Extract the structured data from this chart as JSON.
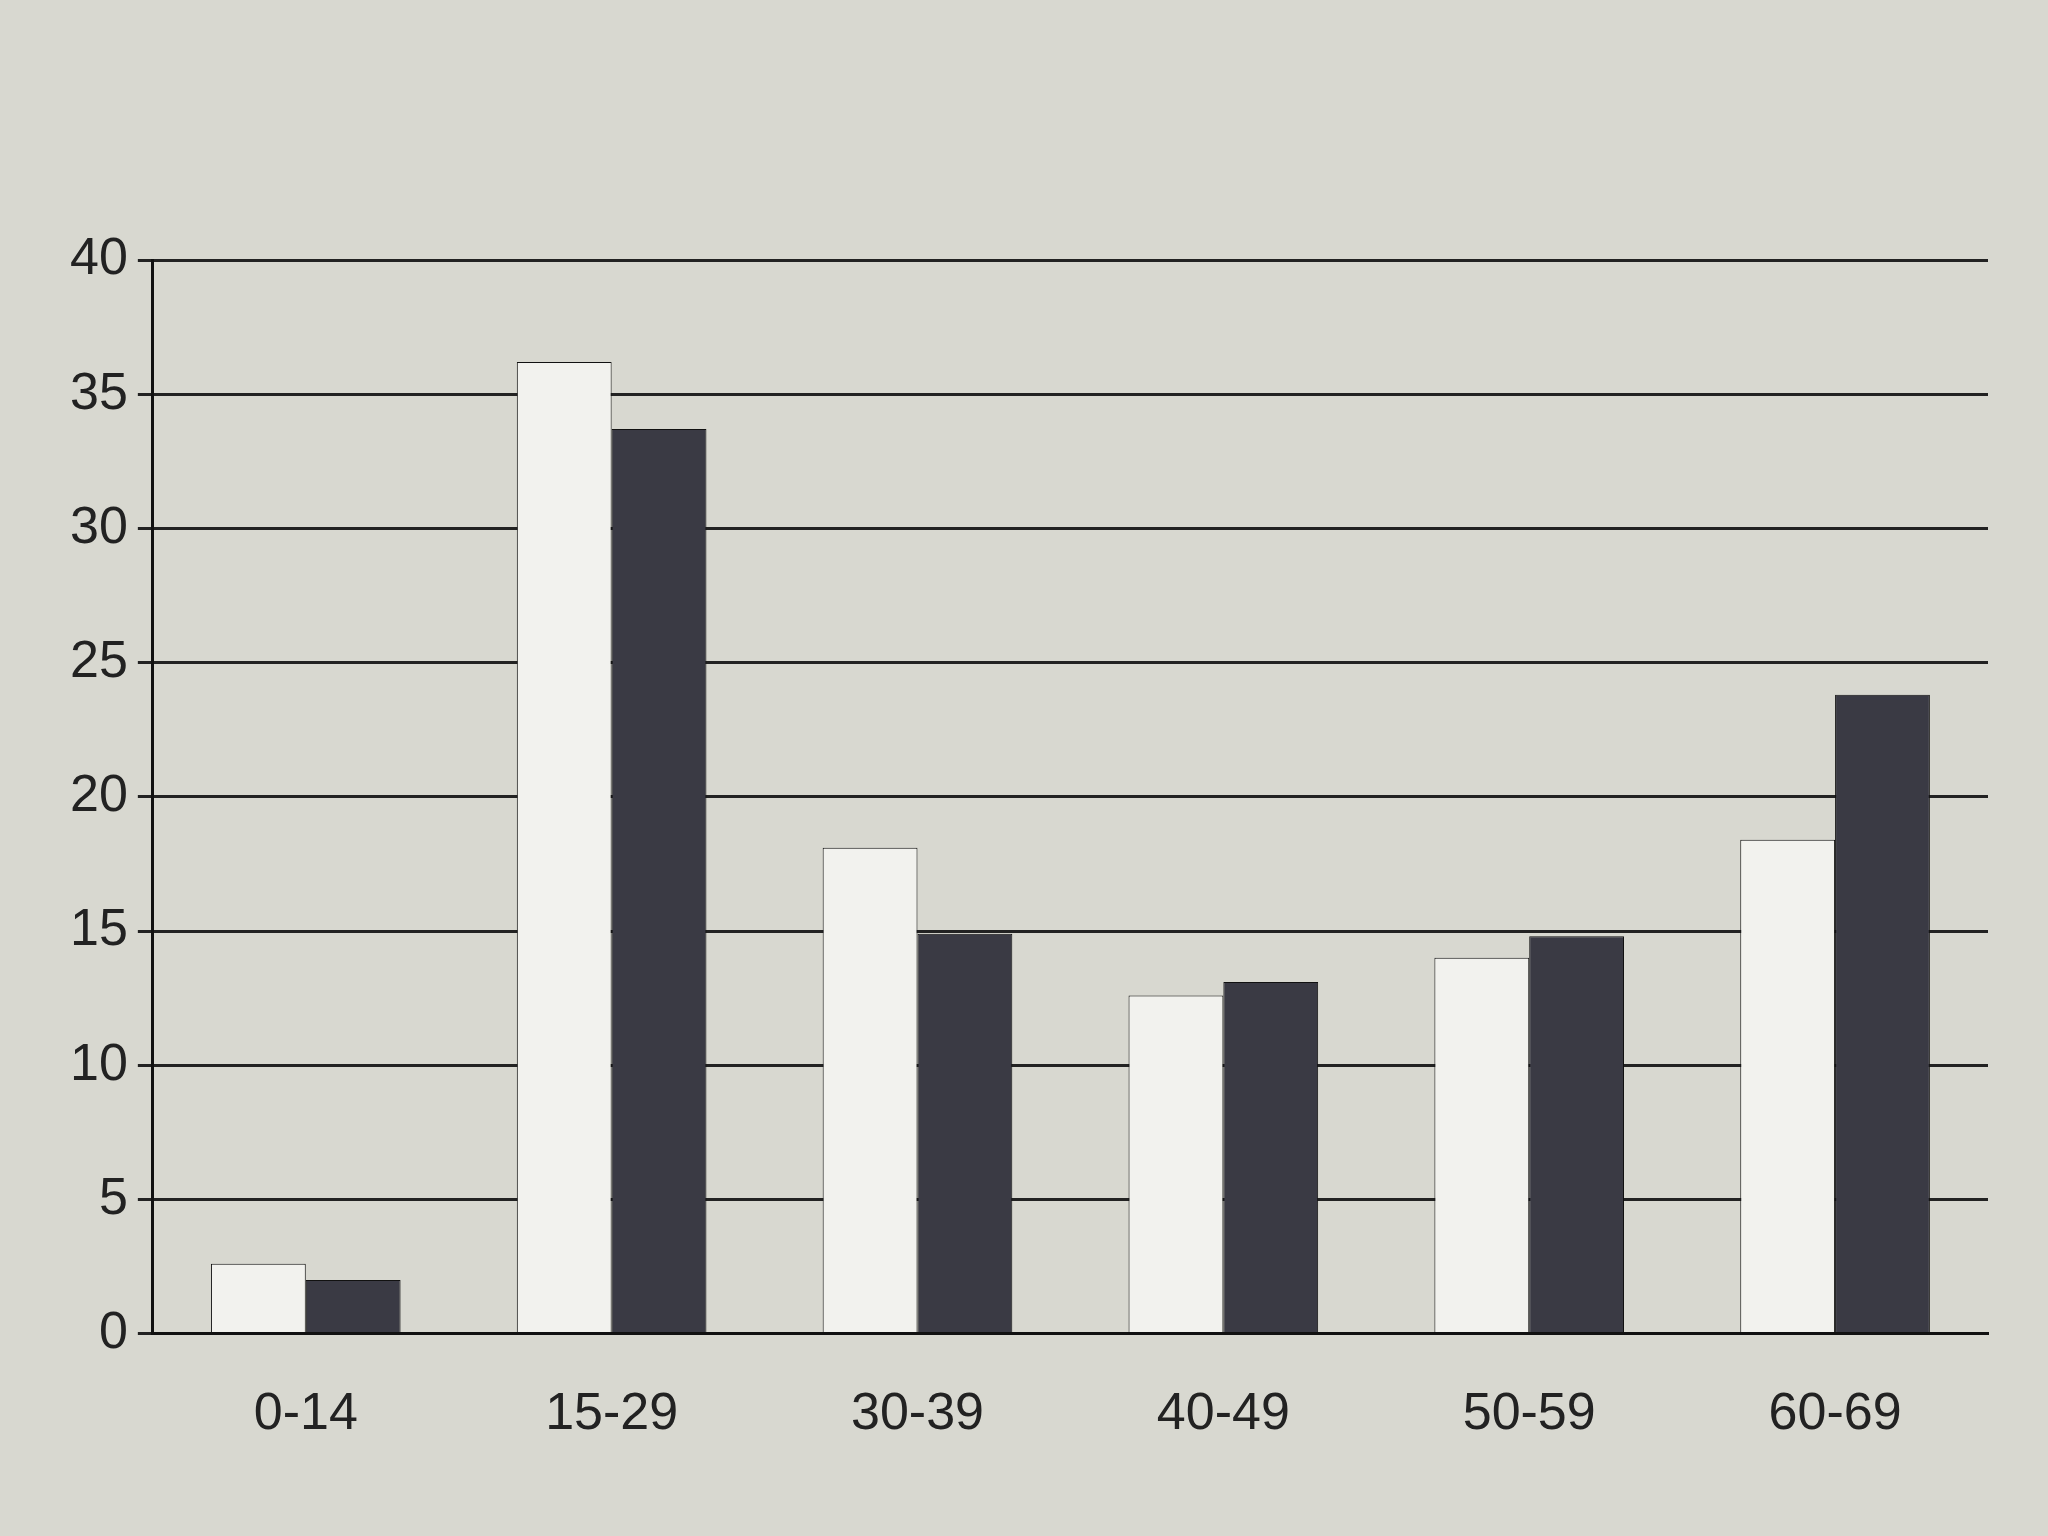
{
  "chart_data": {
    "type": "bar",
    "categories": [
      "0-14",
      "15-29",
      "30-39",
      "40-49",
      "50-59",
      "60-69"
    ],
    "series": [
      {
        "color": "#f2f2ee",
        "values": [
          2.6,
          36.2,
          18.1,
          12.6,
          14.0,
          18.4
        ]
      },
      {
        "color": "#3a3a44",
        "values": [
          2.0,
          33.7,
          14.9,
          13.1,
          14.8,
          23.8
        ]
      }
    ],
    "ylim": [
      0,
      40
    ],
    "yticks": [
      0,
      5,
      10,
      15,
      20,
      25,
      30,
      35,
      40
    ],
    "grid": "y",
    "legend": false
  }
}
